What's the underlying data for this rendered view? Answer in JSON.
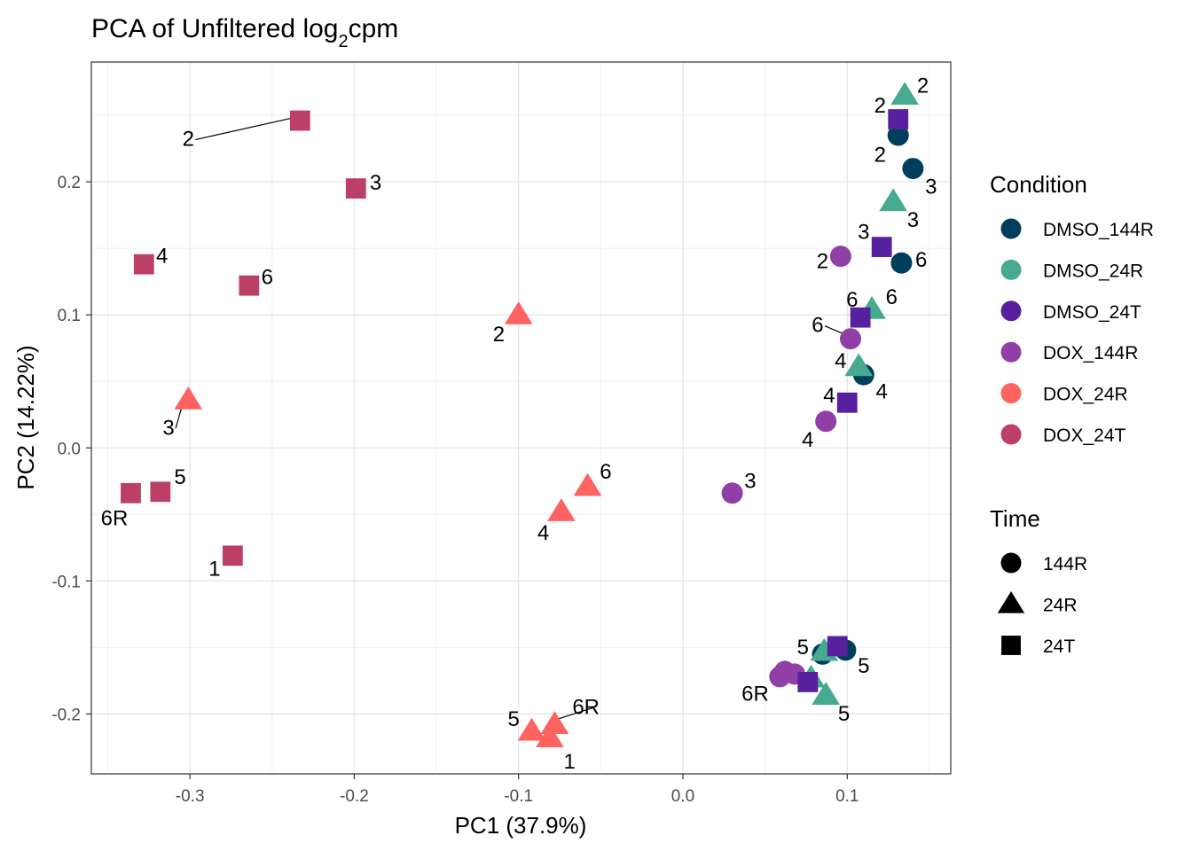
{
  "chart_data": {
    "type": "scatter",
    "title": "PCA of Unfiltered log",
    "title_subscript": "2",
    "title_suffix": "cpm",
    "xlabel": "PC1 (37.9%)",
    "ylabel": "PC2 (14.22%)",
    "xlim": [
      -0.36,
      0.163
    ],
    "ylim": [
      -0.245,
      0.29
    ],
    "xticks": [
      -0.3,
      -0.2,
      -0.1,
      0.0,
      0.1
    ],
    "xtick_labels": [
      "-0.3",
      "-0.2",
      "-0.1",
      "0.0",
      "0.1"
    ],
    "yticks": [
      -0.2,
      -0.1,
      0.0,
      0.1,
      0.2
    ],
    "ytick_labels": [
      "-0.2",
      "-0.1",
      "0.0",
      "0.1",
      "0.2"
    ],
    "grid": true,
    "legend": {
      "position": "right",
      "condition_title": "Condition",
      "conditions": [
        {
          "name": "DMSO_144R",
          "color": "#003f5c"
        },
        {
          "name": "DMSO_24R",
          "color": "#45aa8f"
        },
        {
          "name": "DMSO_24T",
          "color": "#58209e"
        },
        {
          "name": "DOX_144R",
          "color": "#8f3fa6"
        },
        {
          "name": "DOX_24R",
          "color": "#ff6361"
        },
        {
          "name": "DOX_24T",
          "color": "#bc4065"
        }
      ],
      "time_title": "Time",
      "times": [
        {
          "name": "144R",
          "shape": "circle"
        },
        {
          "name": "24R",
          "shape": "triangle"
        },
        {
          "name": "24T",
          "shape": "square"
        }
      ]
    },
    "points": [
      {
        "x": -0.233,
        "y": 0.246,
        "condition": "DOX_24T",
        "time": "24T",
        "label": "2",
        "ldx": -0.068,
        "ldy": -0.013
      },
      {
        "x": -0.199,
        "y": 0.195,
        "condition": "DOX_24T",
        "time": "24T",
        "label": "3",
        "ldx": 0.012,
        "ldy": 0.005
      },
      {
        "x": -0.328,
        "y": 0.138,
        "condition": "DOX_24T",
        "time": "24T",
        "label": "4",
        "ldx": 0.011,
        "ldy": 0.007
      },
      {
        "x": -0.264,
        "y": 0.122,
        "condition": "DOX_24T",
        "time": "24T",
        "label": "6",
        "ldx": 0.011,
        "ldy": 0.007
      },
      {
        "x": -0.336,
        "y": -0.034,
        "condition": "DOX_24T",
        "time": "24T",
        "label": "6R",
        "ldx": -0.01,
        "ldy": -0.018
      },
      {
        "x": -0.318,
        "y": -0.033,
        "condition": "DOX_24T",
        "time": "24T",
        "label": "5",
        "ldx": 0.012,
        "ldy": 0.012
      },
      {
        "x": -0.274,
        "y": -0.081,
        "condition": "DOX_24T",
        "time": "24T",
        "label": "1",
        "ldx": -0.011,
        "ldy": -0.009
      },
      {
        "x": -0.1,
        "y": 0.1,
        "condition": "DOX_24R",
        "time": "24R",
        "label": "2",
        "ldx": -0.012,
        "ldy": -0.014
      },
      {
        "x": -0.301,
        "y": 0.036,
        "condition": "DOX_24R",
        "time": "24R",
        "label": "3",
        "ldx": -0.012,
        "ldy": -0.02
      },
      {
        "x": -0.058,
        "y": -0.029,
        "condition": "DOX_24R",
        "time": "24R",
        "label": "6",
        "ldx": 0.011,
        "ldy": 0.012
      },
      {
        "x": -0.074,
        "y": -0.048,
        "condition": "DOX_24R",
        "time": "24R",
        "label": "4",
        "ldx": -0.011,
        "ldy": -0.015
      },
      {
        "x": -0.092,
        "y": -0.213,
        "condition": "DOX_24R",
        "time": "24R",
        "label": "5",
        "ldx": -0.011,
        "ldy": 0.01
      },
      {
        "x": -0.078,
        "y": -0.208,
        "condition": "DOX_24R",
        "time": "24R",
        "label": "6R",
        "ldx": 0.019,
        "ldy": 0.014
      },
      {
        "x": -0.081,
        "y": -0.218,
        "condition": "DOX_24R",
        "time": "24R",
        "label": "1",
        "ldx": 0.012,
        "ldy": -0.017
      },
      {
        "x": 0.096,
        "y": 0.144,
        "condition": "DOX_144R",
        "time": "144R",
        "label": "2",
        "ldx": -0.011,
        "ldy": -0.003
      },
      {
        "x": 0.102,
        "y": 0.082,
        "condition": "DOX_144R",
        "time": "144R",
        "label": "6",
        "ldx": -0.02,
        "ldy": 0.011
      },
      {
        "x": 0.087,
        "y": 0.02,
        "condition": "DOX_144R",
        "time": "144R",
        "label": "4",
        "ldx": -0.011,
        "ldy": -0.013
      },
      {
        "x": 0.03,
        "y": -0.034,
        "condition": "DOX_144R",
        "time": "144R",
        "label": "3",
        "ldx": 0.011,
        "ldy": 0.01
      },
      {
        "x": 0.062,
        "y": -0.168,
        "condition": "DOX_144R",
        "time": "144R",
        "label": "",
        "ldx": 0,
        "ldy": 0
      },
      {
        "x": 0.068,
        "y": -0.17,
        "condition": "DOX_144R",
        "time": "144R",
        "label": "",
        "ldx": 0,
        "ldy": 0
      },
      {
        "x": 0.059,
        "y": -0.172,
        "condition": "DOX_144R",
        "time": "144R",
        "label": "6R",
        "ldx": -0.015,
        "ldy": -0.012
      },
      {
        "x": 0.131,
        "y": 0.235,
        "condition": "DMSO_144R",
        "time": "144R",
        "label": "2",
        "ldx": -0.011,
        "ldy": -0.014
      },
      {
        "x": 0.14,
        "y": 0.21,
        "condition": "DMSO_144R",
        "time": "144R",
        "label": "3",
        "ldx": 0.011,
        "ldy": -0.013
      },
      {
        "x": 0.133,
        "y": 0.139,
        "condition": "DMSO_144R",
        "time": "144R",
        "label": "6",
        "ldx": 0.012,
        "ldy": 0.003
      },
      {
        "x": 0.11,
        "y": 0.055,
        "condition": "DMSO_144R",
        "time": "144R",
        "label": "4",
        "ldx": 0.011,
        "ldy": -0.012
      },
      {
        "x": 0.085,
        "y": -0.155,
        "condition": "DMSO_144R",
        "time": "144R",
        "label": "",
        "ldx": 0,
        "ldy": 0
      },
      {
        "x": 0.099,
        "y": -0.152,
        "condition": "DMSO_144R",
        "time": "144R",
        "label": "5",
        "ldx": 0.011,
        "ldy": -0.011
      },
      {
        "x": 0.135,
        "y": 0.265,
        "condition": "DMSO_24R",
        "time": "24R",
        "label": "2",
        "ldx": 0.011,
        "ldy": 0.008
      },
      {
        "x": 0.128,
        "y": 0.185,
        "condition": "DMSO_24R",
        "time": "24R",
        "label": "3",
        "ldx": 0.012,
        "ldy": -0.013
      },
      {
        "x": 0.115,
        "y": 0.104,
        "condition": "DMSO_24R",
        "time": "24R",
        "label": "6",
        "ldx": 0.012,
        "ldy": 0.01
      },
      {
        "x": 0.107,
        "y": 0.061,
        "condition": "DMSO_24R",
        "time": "24R",
        "label": "4",
        "ldx": -0.011,
        "ldy": 0.005
      },
      {
        "x": 0.086,
        "y": -0.153,
        "condition": "DMSO_24R",
        "time": "24R",
        "label": "5",
        "ldx": -0.013,
        "ldy": 0.004
      },
      {
        "x": 0.078,
        "y": -0.173,
        "condition": "DMSO_24R",
        "time": "24R",
        "label": "",
        "ldx": 0,
        "ldy": 0
      },
      {
        "x": 0.087,
        "y": -0.186,
        "condition": "DMSO_24R",
        "time": "24R",
        "label": "5",
        "ldx": 0.011,
        "ldy": -0.013
      },
      {
        "x": 0.131,
        "y": 0.247,
        "condition": "DMSO_24T",
        "time": "24T",
        "label": "2",
        "ldx": -0.011,
        "ldy": 0.011
      },
      {
        "x": 0.121,
        "y": 0.151,
        "condition": "DMSO_24T",
        "time": "24T",
        "label": "3",
        "ldx": -0.011,
        "ldy": 0.012
      },
      {
        "x": 0.108,
        "y": 0.098,
        "condition": "DMSO_24T",
        "time": "24T",
        "label": "6",
        "ldx": -0.005,
        "ldy": 0.014
      },
      {
        "x": 0.1,
        "y": 0.034,
        "condition": "DMSO_24T",
        "time": "24T",
        "label": "4",
        "ldx": -0.011,
        "ldy": 0.006
      },
      {
        "x": 0.094,
        "y": -0.149,
        "condition": "DMSO_24T",
        "time": "24T",
        "label": "",
        "ldx": 0,
        "ldy": 0
      },
      {
        "x": 0.076,
        "y": -0.176,
        "condition": "DMSO_24T",
        "time": "24T",
        "label": "",
        "ldx": 0,
        "ldy": 0
      }
    ]
  }
}
